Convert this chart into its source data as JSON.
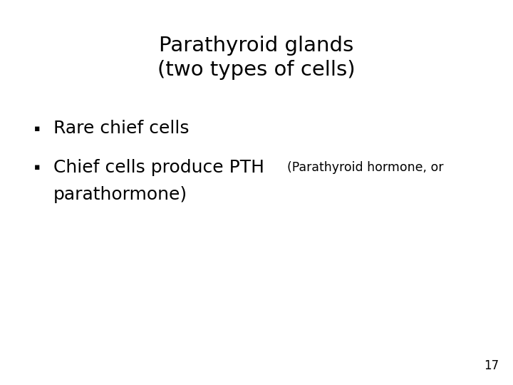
{
  "title_line1": "Parathyroid glands",
  "title_line2": "(two types of cells)",
  "bullet1": "Rare chief cells",
  "bullet2_main": "Chief cells produce PTH ",
  "bullet2_sub": "(Parathyroid hormone, or",
  "bullet2_sub2": "parathormone)",
  "page_number": "17",
  "background_color": "#ffffff",
  "text_color": "#000000",
  "title_fontsize": 21,
  "bullet_fontsize": 18,
  "sub_fontsize": 12.5,
  "page_fontsize": 12
}
